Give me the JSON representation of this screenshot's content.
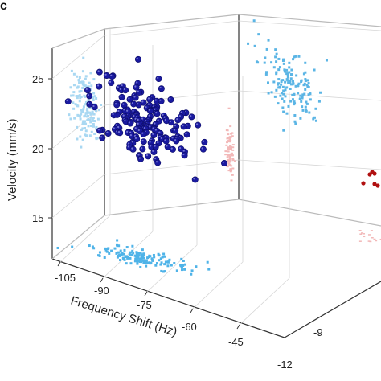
{
  "panel_label": "c",
  "chart_data": {
    "type": "scatter",
    "dimensions": "3d",
    "ylabel": "Velocity (mm/s)",
    "xlabel": "Frequency Shift (Hz)",
    "zlabel": "",
    "y_ticks": [
      "15",
      "20",
      "25"
    ],
    "x_ticks": [
      "-105",
      "-90",
      "-75",
      "-60",
      "-45"
    ],
    "z_ticks": [
      "-9",
      "-12"
    ],
    "ylim": [
      12,
      27
    ],
    "xlim": [
      -110,
      -40
    ],
    "grid": true,
    "cluster_main": {
      "color": "#1a1aa0",
      "role": "3D data points",
      "center": {
        "x": -72,
        "y": 21.5,
        "z": -7
      },
      "spread": {
        "x": 10,
        "y": 1.6,
        "z": 1.5
      },
      "count": 170
    },
    "projection_velocity_vs_shift": {
      "color": "#a9d8f2",
      "role": "projection on back wall",
      "count": 150
    },
    "projection_shift_floor": {
      "color": "#4fb3e8",
      "role": "projection on floor",
      "count": 150
    },
    "projection_velocity_side": {
      "color": "#5bb5e5",
      "role": "projection on right wall",
      "count": 150
    },
    "cluster_secondary": {
      "color": "#f2b8b8",
      "role": "secondary data",
      "count": 80
    },
    "cluster_red": {
      "color": "#b01010",
      "role": "secondary data points",
      "count": 6
    }
  }
}
